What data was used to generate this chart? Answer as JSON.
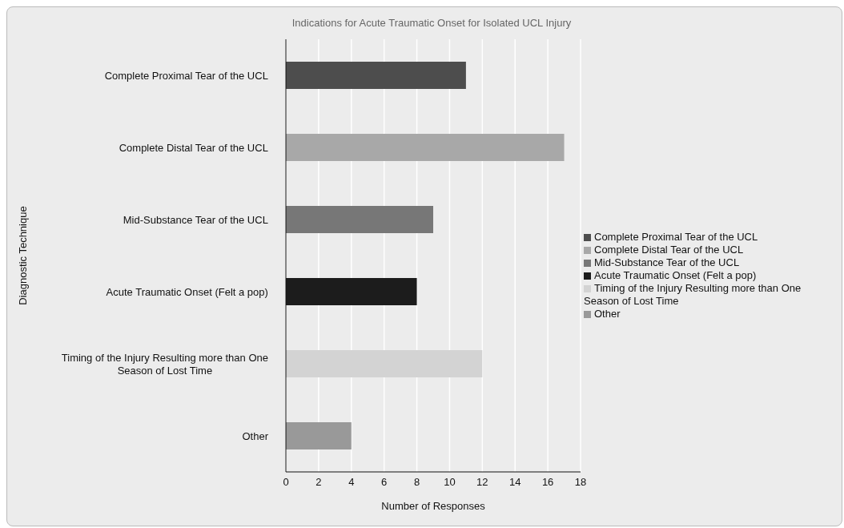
{
  "chart_data": {
    "type": "bar",
    "orientation": "horizontal",
    "stacked": true,
    "title": "Indications for Acute Traumatic Onset for Isolated UCL Injury",
    "xlabel": "Number of Responses",
    "ylabel": "Diagnostic Technique",
    "categories": [
      "Complete Proximal Tear of the UCL",
      "Complete Distal Tear of the UCL",
      "Mid-Substance Tear of the UCL",
      "Acute Traumatic Onset (Felt a pop)",
      "Timing of the Injury Resulting more than One Season of Lost Time",
      "Other"
    ],
    "series": [
      {
        "name": "Complete Proximal Tear of the UCL",
        "color": "#4d4d4d",
        "values": [
          11,
          null,
          null,
          null,
          null,
          null
        ]
      },
      {
        "name": "Complete Distal Tear of the UCL",
        "color": "#a8a8a8",
        "values": [
          null,
          17,
          null,
          null,
          null,
          null
        ]
      },
      {
        "name": "Mid-Substance Tear of the UCL",
        "color": "#777777",
        "values": [
          null,
          null,
          9,
          null,
          null,
          null
        ]
      },
      {
        "name": "Acute Traumatic Onset (Felt a pop)",
        "color": "#1c1c1c",
        "values": [
          null,
          null,
          null,
          8,
          null,
          null
        ]
      },
      {
        "name": "Timing of the Injury Resulting more than One Season of Lost Time",
        "color": "#d3d3d3",
        "values": [
          null,
          null,
          null,
          null,
          12,
          null
        ]
      },
      {
        "name": "Other",
        "color": "#999999",
        "values": [
          null,
          null,
          null,
          null,
          null,
          4
        ]
      }
    ],
    "xlim": [
      0,
      18
    ],
    "xticks": [
      0,
      2,
      4,
      6,
      8,
      10,
      12,
      14,
      16,
      18
    ],
    "grid": "x",
    "legend": "right"
  }
}
